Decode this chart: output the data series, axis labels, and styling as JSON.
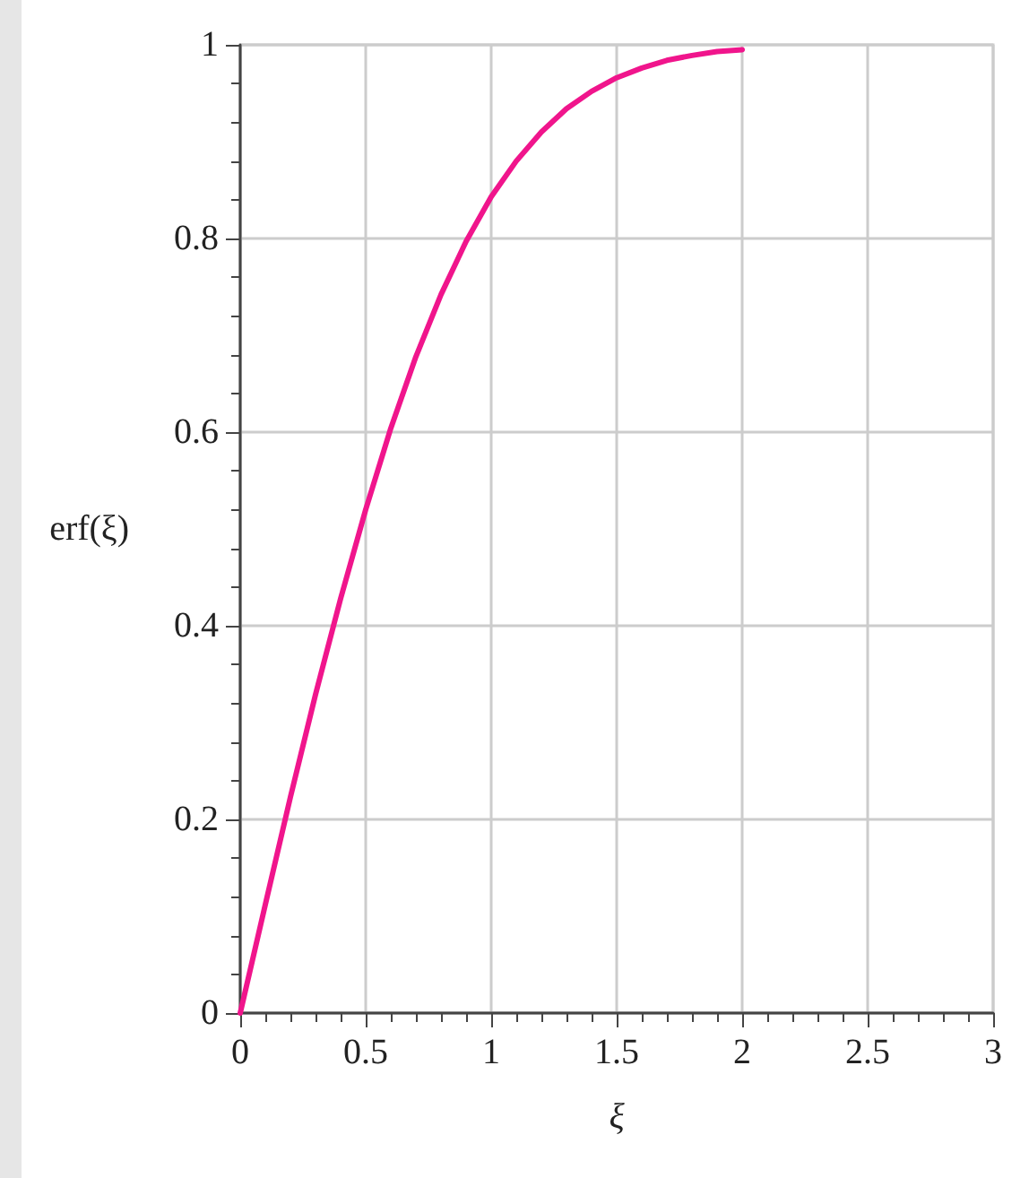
{
  "chart_data": {
    "type": "line",
    "xlabel": "ξ",
    "ylabel": "erf(ξ)",
    "x": [
      0,
      0.1,
      0.2,
      0.3,
      0.4,
      0.5,
      0.6,
      0.7,
      0.8,
      0.9,
      1.0,
      1.1,
      1.2,
      1.3,
      1.4,
      1.5,
      1.6,
      1.7,
      1.8,
      1.9,
      2.0
    ],
    "series": [
      {
        "color": "#f0158c",
        "values": [
          0,
          0.112,
          0.223,
          0.329,
          0.428,
          0.52,
          0.604,
          0.678,
          0.742,
          0.797,
          0.843,
          0.88,
          0.91,
          0.934,
          0.952,
          0.966,
          0.976,
          0.984,
          0.989,
          0.993,
          0.995
        ]
      }
    ],
    "xlim": [
      0,
      3
    ],
    "xticks": [
      0,
      0.5,
      1,
      1.5,
      2,
      2.5,
      3
    ],
    "ylim": [
      0,
      1
    ],
    "yticks": [
      0,
      0.2,
      0.4,
      0.6,
      0.8,
      1
    ],
    "grid": true,
    "marker": "none",
    "line_style": "solid"
  }
}
